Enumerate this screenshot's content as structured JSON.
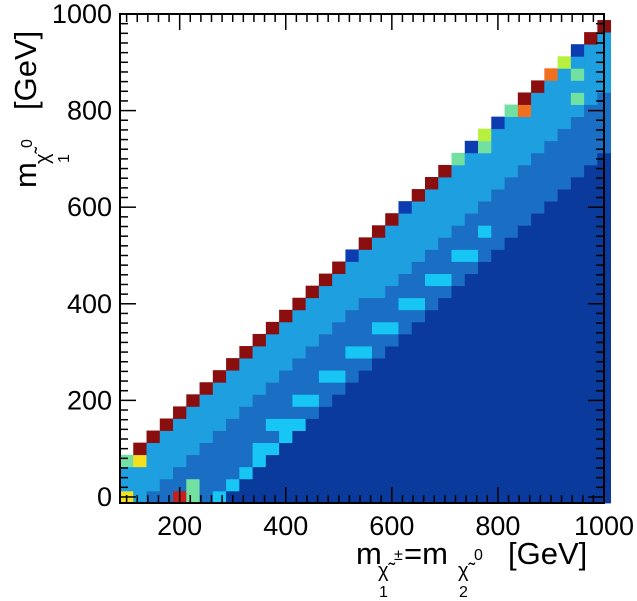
{
  "chart_data": {
    "type": "heatmap",
    "xlabel": {
      "main": "m",
      "sub1": "χ̃",
      "sup1": "±",
      "idx1": "1",
      "eq": "=m",
      "sub2": "χ̃",
      "sup2": "0",
      "idx2": "2",
      "unit": "[GeV]"
    },
    "ylabel": {
      "main": "m",
      "sub": "χ̃",
      "sup": "0",
      "idx": "1",
      "unit": "[GeV]"
    },
    "x_ticks": [
      "200",
      "400",
      "600",
      "800",
      "1000"
    ],
    "y_ticks": [
      "0",
      "200",
      "400",
      "600",
      "800",
      "1000"
    ],
    "xlim": [
      87.5,
      1000
    ],
    "ylim": [
      -12.5,
      1000
    ],
    "bin_width": 25,
    "color_levels": {
      "navy": "#0a3a9c",
      "mid_blue": "#1a6ec4",
      "sky_blue": "#1e9fe0",
      "cyan": "#18c6f6",
      "dark_blue": "#0d3bb0",
      "green": "#72e0a0",
      "yellow_green": "#b8f040",
      "yellow": "#f5e020",
      "orange": "#f07020",
      "dark_red": "#8b0e0e",
      "red": "#c81e1e"
    },
    "diagonal_edge_colors": [
      "dark_red",
      "dark_red",
      "dark_red",
      "dark_red",
      "dark_red",
      "dark_red",
      "dark_red",
      "dark_red",
      "dark_red",
      "dark_red",
      "dark_red",
      "dark_red",
      "dark_red",
      "dark_red",
      "dark_red",
      "dark_red",
      "dark_red",
      "dark_blue",
      "dark_red",
      "dark_red",
      "dark_red",
      "dark_blue",
      "dark_red",
      "dark_red",
      "dark_red",
      "green",
      "dark_blue",
      "yellow_green",
      "dark_blue",
      "green",
      "dark_red",
      "dark_red",
      "orange",
      "yellow_green",
      "dark_blue",
      "dark_red",
      "dark_red"
    ],
    "special_cells": [
      {
        "x": 100,
        "y": 75,
        "c": "green"
      },
      {
        "x": 125,
        "y": 75,
        "c": "yellow"
      },
      {
        "x": 100,
        "y": 0,
        "c": "yellow"
      },
      {
        "x": 200,
        "y": 0,
        "c": "red"
      },
      {
        "x": 225,
        "y": 0,
        "c": "green"
      },
      {
        "x": 225,
        "y": 25,
        "c": "green"
      },
      {
        "x": 850,
        "y": 800,
        "c": "orange"
      },
      {
        "x": 900,
        "y": 900,
        "c": "orange"
      },
      {
        "x": 925,
        "y": 925,
        "c": "yellow_green"
      },
      {
        "x": 950,
        "y": 950,
        "c": "yellow_green"
      },
      {
        "x": 950,
        "y": 825,
        "c": "green"
      },
      {
        "x": 775,
        "y": 725,
        "c": "green"
      },
      {
        "x": 950,
        "y": 875,
        "c": "green"
      }
    ]
  }
}
